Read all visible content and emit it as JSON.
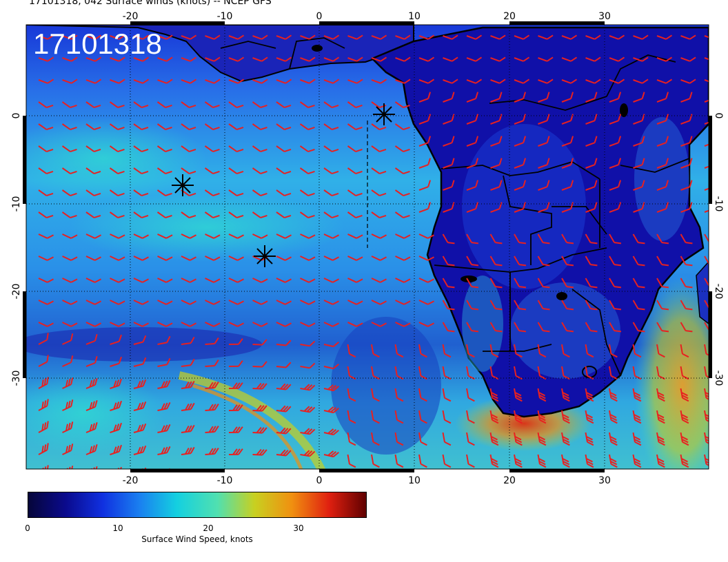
{
  "title": "17101318, 042 Surface winds (knots) -- NCEP GFS",
  "stamp": "17101318",
  "axes": {
    "lon_ticks": [
      "-20",
      "-10",
      "0",
      "10",
      "20",
      "30"
    ],
    "lat_ticks": [
      "0",
      "-10",
      "-20",
      "-30"
    ]
  },
  "colorbar": {
    "label": "Surface Wind Speed, knots",
    "ticks": [
      "0",
      "10",
      "20",
      "30"
    ],
    "colors": [
      "#06063a",
      "#0a0a8c",
      "#1030e0",
      "#1a80f0",
      "#14d0e0",
      "#50e0b0",
      "#c8d020",
      "#f09010",
      "#e02010",
      "#600000"
    ]
  },
  "map": {
    "land_color": "#1010a0",
    "ocean_color": "#2870e0",
    "barb_color": "#e82020",
    "border_color": "#000000",
    "markers": [
      {
        "name": "marker-storm-1"
      },
      {
        "name": "marker-storm-2"
      },
      {
        "name": "marker-storm-3"
      }
    ]
  }
}
